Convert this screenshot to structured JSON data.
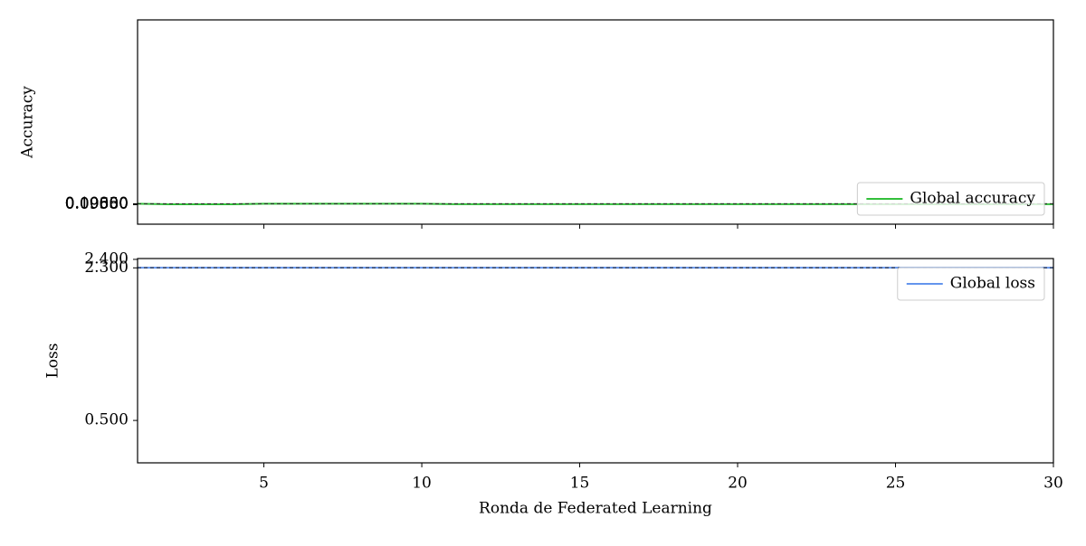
{
  "chart_data": [
    {
      "type": "line",
      "ylabel": "Accuracy",
      "x": [
        1,
        2,
        3,
        4,
        5,
        6,
        7,
        8,
        9,
        10,
        11,
        12,
        13,
        14,
        15,
        16,
        17,
        18,
        19,
        20,
        21,
        22,
        23,
        24,
        25,
        26,
        27,
        28,
        29,
        30
      ],
      "series": [
        {
          "name": "Global accuracy",
          "color": "#33bf3b",
          "values": [
            0.1,
            0.0975,
            0.0975,
            0.0975,
            0.1,
            0.1,
            0.1,
            0.1,
            0.1,
            0.1,
            0.098,
            0.098,
            0.098,
            0.098,
            0.098,
            0.098,
            0.098,
            0.098,
            0.098,
            0.098,
            0.098,
            0.098,
            0.098,
            0.098,
            0.098,
            0.098,
            0.098,
            0.098,
            0.098,
            0.098
          ]
        }
      ],
      "hline": 0.1,
      "xlim": [
        1,
        30
      ],
      "xticks": [
        5,
        10,
        15,
        20,
        25,
        30
      ],
      "xtick_labels": false,
      "ylim": [
        0,
        1
      ],
      "yticks": [
        {
          "value": 0.0958,
          "label": "0.09580"
        },
        {
          "value": 0.0965,
          "label": "0.09650"
        },
        {
          "value": 0.098,
          "label": "0.09800"
        },
        {
          "value": 0.1,
          "label": "0.10000"
        }
      ],
      "legend": "lower right"
    },
    {
      "type": "line",
      "ylabel": "Loss",
      "xlabel": "Ronda de Federated Learning",
      "x": [
        1,
        2,
        3,
        4,
        5,
        6,
        7,
        8,
        9,
        10,
        11,
        12,
        13,
        14,
        15,
        16,
        17,
        18,
        19,
        20,
        21,
        22,
        23,
        24,
        25,
        26,
        27,
        28,
        29,
        30
      ],
      "series": [
        {
          "name": "Global loss",
          "color": "#6495ed",
          "values": [
            2.302,
            2.302,
            2.302,
            2.302,
            2.302,
            2.302,
            2.302,
            2.302,
            2.302,
            2.302,
            2.302,
            2.302,
            2.302,
            2.302,
            2.302,
            2.302,
            2.302,
            2.302,
            2.302,
            2.302,
            2.302,
            2.302,
            2.302,
            2.302,
            2.302,
            2.302,
            2.302,
            2.302,
            2.302,
            2.302
          ]
        }
      ],
      "hline": 2.302,
      "xlim": [
        1,
        30
      ],
      "xticks": [
        5,
        10,
        15,
        20,
        25,
        30
      ],
      "xtick_labels": true,
      "ylim": [
        0,
        2.41
      ],
      "yticks": [
        {
          "value": 2.4,
          "label": "2.400"
        },
        {
          "value": 2.3,
          "label": "2.300"
        },
        {
          "value": 0.5,
          "label": "0.500"
        }
      ],
      "legend": "upper right"
    }
  ]
}
